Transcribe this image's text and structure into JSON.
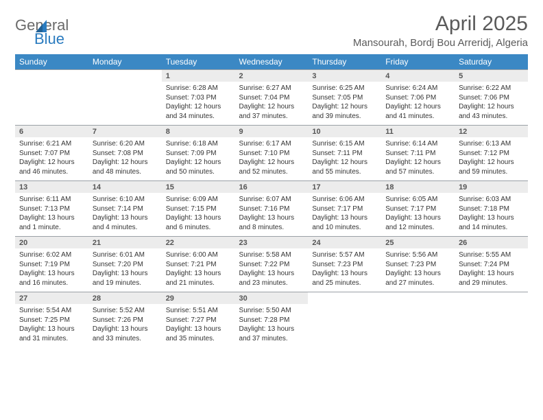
{
  "logo": {
    "line1": "General",
    "line2": "Blue"
  },
  "title": "April 2025",
  "location": "Mansourah, Bordj Bou Arreridj, Algeria",
  "colors": {
    "header_bg": "#3b88c4",
    "header_fg": "#ffffff",
    "daynum_bg": "#ececec",
    "border": "#9aa0a6",
    "text": "#333333",
    "title": "#5a5a5a"
  },
  "weekdays": [
    "Sunday",
    "Monday",
    "Tuesday",
    "Wednesday",
    "Thursday",
    "Friday",
    "Saturday"
  ],
  "weeks": [
    [
      null,
      null,
      {
        "n": "1",
        "sr": "Sunrise: 6:28 AM",
        "ss": "Sunset: 7:03 PM",
        "dl": "Daylight: 12 hours and 34 minutes."
      },
      {
        "n": "2",
        "sr": "Sunrise: 6:27 AM",
        "ss": "Sunset: 7:04 PM",
        "dl": "Daylight: 12 hours and 37 minutes."
      },
      {
        "n": "3",
        "sr": "Sunrise: 6:25 AM",
        "ss": "Sunset: 7:05 PM",
        "dl": "Daylight: 12 hours and 39 minutes."
      },
      {
        "n": "4",
        "sr": "Sunrise: 6:24 AM",
        "ss": "Sunset: 7:06 PM",
        "dl": "Daylight: 12 hours and 41 minutes."
      },
      {
        "n": "5",
        "sr": "Sunrise: 6:22 AM",
        "ss": "Sunset: 7:06 PM",
        "dl": "Daylight: 12 hours and 43 minutes."
      }
    ],
    [
      {
        "n": "6",
        "sr": "Sunrise: 6:21 AM",
        "ss": "Sunset: 7:07 PM",
        "dl": "Daylight: 12 hours and 46 minutes."
      },
      {
        "n": "7",
        "sr": "Sunrise: 6:20 AM",
        "ss": "Sunset: 7:08 PM",
        "dl": "Daylight: 12 hours and 48 minutes."
      },
      {
        "n": "8",
        "sr": "Sunrise: 6:18 AM",
        "ss": "Sunset: 7:09 PM",
        "dl": "Daylight: 12 hours and 50 minutes."
      },
      {
        "n": "9",
        "sr": "Sunrise: 6:17 AM",
        "ss": "Sunset: 7:10 PM",
        "dl": "Daylight: 12 hours and 52 minutes."
      },
      {
        "n": "10",
        "sr": "Sunrise: 6:15 AM",
        "ss": "Sunset: 7:11 PM",
        "dl": "Daylight: 12 hours and 55 minutes."
      },
      {
        "n": "11",
        "sr": "Sunrise: 6:14 AM",
        "ss": "Sunset: 7:11 PM",
        "dl": "Daylight: 12 hours and 57 minutes."
      },
      {
        "n": "12",
        "sr": "Sunrise: 6:13 AM",
        "ss": "Sunset: 7:12 PM",
        "dl": "Daylight: 12 hours and 59 minutes."
      }
    ],
    [
      {
        "n": "13",
        "sr": "Sunrise: 6:11 AM",
        "ss": "Sunset: 7:13 PM",
        "dl": "Daylight: 13 hours and 1 minute."
      },
      {
        "n": "14",
        "sr": "Sunrise: 6:10 AM",
        "ss": "Sunset: 7:14 PM",
        "dl": "Daylight: 13 hours and 4 minutes."
      },
      {
        "n": "15",
        "sr": "Sunrise: 6:09 AM",
        "ss": "Sunset: 7:15 PM",
        "dl": "Daylight: 13 hours and 6 minutes."
      },
      {
        "n": "16",
        "sr": "Sunrise: 6:07 AM",
        "ss": "Sunset: 7:16 PM",
        "dl": "Daylight: 13 hours and 8 minutes."
      },
      {
        "n": "17",
        "sr": "Sunrise: 6:06 AM",
        "ss": "Sunset: 7:17 PM",
        "dl": "Daylight: 13 hours and 10 minutes."
      },
      {
        "n": "18",
        "sr": "Sunrise: 6:05 AM",
        "ss": "Sunset: 7:17 PM",
        "dl": "Daylight: 13 hours and 12 minutes."
      },
      {
        "n": "19",
        "sr": "Sunrise: 6:03 AM",
        "ss": "Sunset: 7:18 PM",
        "dl": "Daylight: 13 hours and 14 minutes."
      }
    ],
    [
      {
        "n": "20",
        "sr": "Sunrise: 6:02 AM",
        "ss": "Sunset: 7:19 PM",
        "dl": "Daylight: 13 hours and 16 minutes."
      },
      {
        "n": "21",
        "sr": "Sunrise: 6:01 AM",
        "ss": "Sunset: 7:20 PM",
        "dl": "Daylight: 13 hours and 19 minutes."
      },
      {
        "n": "22",
        "sr": "Sunrise: 6:00 AM",
        "ss": "Sunset: 7:21 PM",
        "dl": "Daylight: 13 hours and 21 minutes."
      },
      {
        "n": "23",
        "sr": "Sunrise: 5:58 AM",
        "ss": "Sunset: 7:22 PM",
        "dl": "Daylight: 13 hours and 23 minutes."
      },
      {
        "n": "24",
        "sr": "Sunrise: 5:57 AM",
        "ss": "Sunset: 7:23 PM",
        "dl": "Daylight: 13 hours and 25 minutes."
      },
      {
        "n": "25",
        "sr": "Sunrise: 5:56 AM",
        "ss": "Sunset: 7:23 PM",
        "dl": "Daylight: 13 hours and 27 minutes."
      },
      {
        "n": "26",
        "sr": "Sunrise: 5:55 AM",
        "ss": "Sunset: 7:24 PM",
        "dl": "Daylight: 13 hours and 29 minutes."
      }
    ],
    [
      {
        "n": "27",
        "sr": "Sunrise: 5:54 AM",
        "ss": "Sunset: 7:25 PM",
        "dl": "Daylight: 13 hours and 31 minutes."
      },
      {
        "n": "28",
        "sr": "Sunrise: 5:52 AM",
        "ss": "Sunset: 7:26 PM",
        "dl": "Daylight: 13 hours and 33 minutes."
      },
      {
        "n": "29",
        "sr": "Sunrise: 5:51 AM",
        "ss": "Sunset: 7:27 PM",
        "dl": "Daylight: 13 hours and 35 minutes."
      },
      {
        "n": "30",
        "sr": "Sunrise: 5:50 AM",
        "ss": "Sunset: 7:28 PM",
        "dl": "Daylight: 13 hours and 37 minutes."
      },
      null,
      null,
      null
    ]
  ]
}
